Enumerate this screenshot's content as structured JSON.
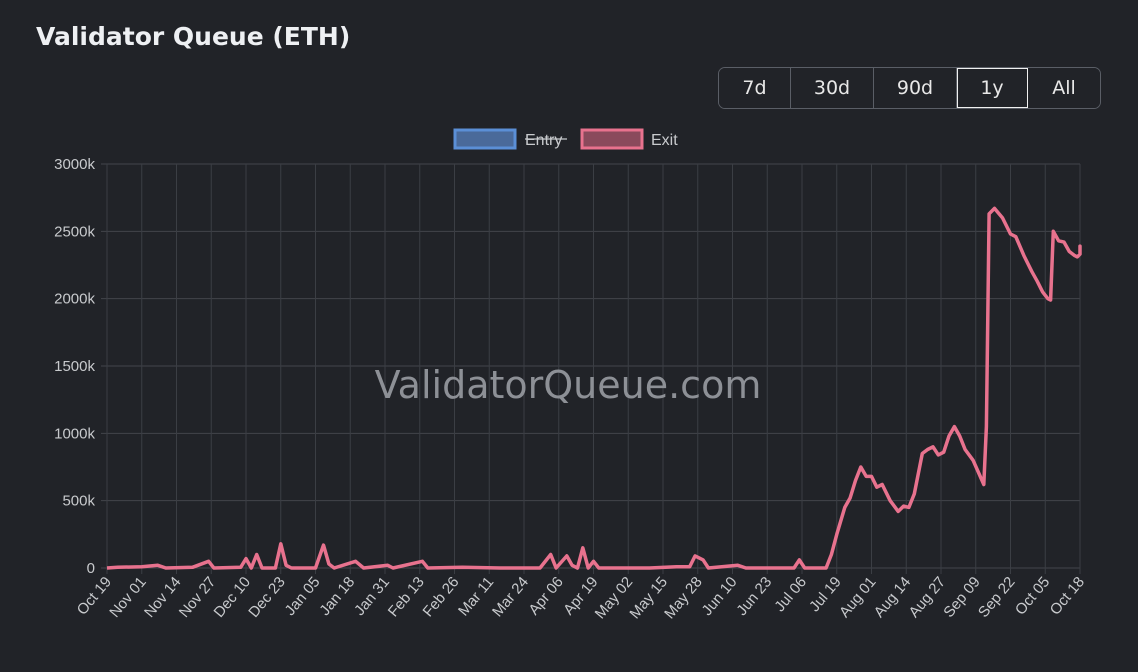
{
  "title": "Validator Queue (ETH)",
  "range_buttons": [
    "7d",
    "30d",
    "90d",
    "1y",
    "All"
  ],
  "active_range": "1y",
  "watermark": "ValidatorQueue.com",
  "chart_data": {
    "type": "line",
    "title": "",
    "xlabel": "",
    "ylabel": "",
    "ylim": [
      0,
      3000
    ],
    "y_tick_labels": [
      "0",
      "500k",
      "1000k",
      "1500k",
      "2000k",
      "2500k",
      "3000k"
    ],
    "x_tick_labels": [
      "Oct 19",
      "Nov 01",
      "Nov 14",
      "Nov 27",
      "Dec 10",
      "Dec 23",
      "Jan 05",
      "Jan 18",
      "Jan 31",
      "Feb 13",
      "Feb 26",
      "Mar 11",
      "Mar 24",
      "Apr 06",
      "Apr 19",
      "May 02",
      "May 15",
      "May 28",
      "Jun 10",
      "Jun 23",
      "Jul 06",
      "Jul 19",
      "Aug 01",
      "Aug 14",
      "Aug 27",
      "Sep 09",
      "Sep 22",
      "Oct 05",
      "Oct 18"
    ],
    "grid": true,
    "legend_position": "top",
    "series": [
      {
        "name": "Entry",
        "color": "#5b8fd6",
        "hidden": true,
        "points": []
      },
      {
        "name": "Exit",
        "color": "#e8728e",
        "hidden": false,
        "points": [
          [
            "Oct 19",
            0
          ],
          [
            "Oct 23",
            5
          ],
          [
            "Nov 01",
            10
          ],
          [
            "Nov 07",
            20
          ],
          [
            "Nov 10",
            0
          ],
          [
            "Nov 20",
            5
          ],
          [
            "Nov 26",
            50
          ],
          [
            "Nov 28",
            0
          ],
          [
            "Dec 08",
            5
          ],
          [
            "Dec 10",
            70
          ],
          [
            "Dec 12",
            0
          ],
          [
            "Dec 14",
            100
          ],
          [
            "Dec 16",
            0
          ],
          [
            "Dec 21",
            0
          ],
          [
            "Dec 23",
            180
          ],
          [
            "Dec 25",
            20
          ],
          [
            "Dec 27",
            0
          ],
          [
            "Jan 05",
            0
          ],
          [
            "Jan 08",
            170
          ],
          [
            "Jan 10",
            30
          ],
          [
            "Jan 12",
            0
          ],
          [
            "Jan 20",
            50
          ],
          [
            "Jan 23",
            0
          ],
          [
            "Feb 01",
            20
          ],
          [
            "Feb 03",
            0
          ],
          [
            "Feb 14",
            50
          ],
          [
            "Feb 16",
            0
          ],
          [
            "Mar 01",
            5
          ],
          [
            "Mar 15",
            0
          ],
          [
            "Mar 30",
            0
          ],
          [
            "Apr 03",
            100
          ],
          [
            "Apr 05",
            0
          ],
          [
            "Apr 09",
            90
          ],
          [
            "Apr 11",
            20
          ],
          [
            "Apr 13",
            0
          ],
          [
            "Apr 15",
            150
          ],
          [
            "Apr 17",
            0
          ],
          [
            "Apr 19",
            50
          ],
          [
            "Apr 21",
            0
          ],
          [
            "May 10",
            0
          ],
          [
            "May 20",
            10
          ],
          [
            "May 25",
            10
          ],
          [
            "May 27",
            90
          ],
          [
            "May 30",
            60
          ],
          [
            "Jun 01",
            0
          ],
          [
            "Jun 12",
            20
          ],
          [
            "Jun 15",
            0
          ],
          [
            "Jul 03",
            0
          ],
          [
            "Jul 05",
            60
          ],
          [
            "Jul 07",
            0
          ],
          [
            "Jul 15",
            0
          ],
          [
            "Jul 17",
            100
          ],
          [
            "Jul 19",
            250
          ],
          [
            "Jul 22",
            450
          ],
          [
            "Jul 24",
            520
          ],
          [
            "Jul 26",
            650
          ],
          [
            "Jul 28",
            750
          ],
          [
            "Jul 30",
            680
          ],
          [
            "Aug 01",
            680
          ],
          [
            "Aug 03",
            600
          ],
          [
            "Aug 05",
            620
          ],
          [
            "Aug 08",
            500
          ],
          [
            "Aug 11",
            420
          ],
          [
            "Aug 13",
            460
          ],
          [
            "Aug 15",
            450
          ],
          [
            "Aug 17",
            550
          ],
          [
            "Aug 20",
            850
          ],
          [
            "Aug 22",
            880
          ],
          [
            "Aug 24",
            900
          ],
          [
            "Aug 26",
            840
          ],
          [
            "Aug 28",
            860
          ],
          [
            "Aug 30",
            980
          ],
          [
            "Sep 01",
            1050
          ],
          [
            "Sep 03",
            980
          ],
          [
            "Sep 05",
            880
          ],
          [
            "Sep 08",
            800
          ],
          [
            "Sep 12",
            620
          ],
          [
            "Sep 13",
            1050
          ],
          [
            "Sep 14",
            2630
          ],
          [
            "Sep 16",
            2670
          ],
          [
            "Sep 19",
            2600
          ],
          [
            "Sep 22",
            2480
          ],
          [
            "Sep 24",
            2460
          ],
          [
            "Sep 27",
            2320
          ],
          [
            "Sep 30",
            2200
          ],
          [
            "Oct 02",
            2130
          ],
          [
            "Oct 04",
            2050
          ],
          [
            "Oct 06",
            2000
          ],
          [
            "Oct 07",
            1990
          ],
          [
            "Oct 08",
            2500
          ],
          [
            "Oct 10",
            2430
          ],
          [
            "Oct 12",
            2420
          ],
          [
            "Oct 14",
            2350
          ],
          [
            "Oct 16",
            2320
          ],
          [
            "Oct 17",
            2310
          ],
          [
            "Oct 19",
            2330
          ],
          [
            "Oct 20",
            2390
          ],
          [
            "Oct 21",
            2350
          ]
        ]
      }
    ]
  }
}
